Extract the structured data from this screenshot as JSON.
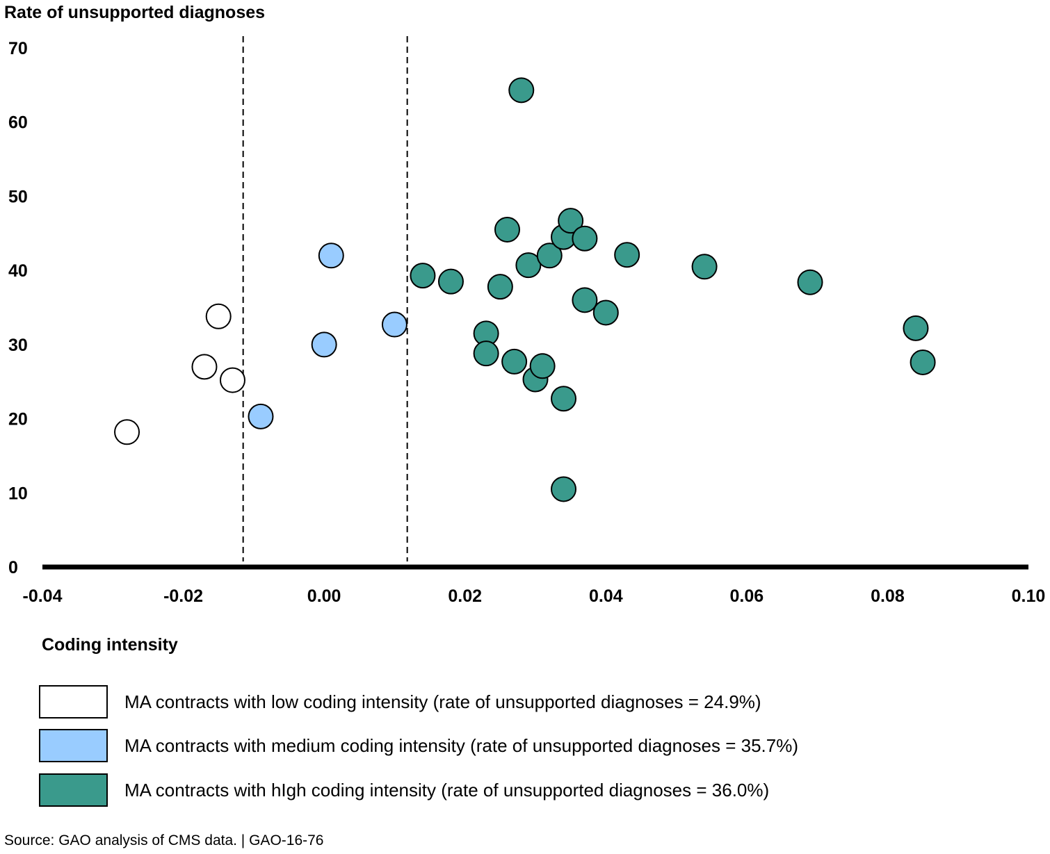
{
  "chart_data": {
    "type": "scatter",
    "y_title": "Rate of unsupported diagnoses",
    "xlim": [
      -0.04,
      0.1
    ],
    "ylim": [
      0,
      70
    ],
    "x_ticks": [
      "-0.04",
      "-0.02",
      "0.00",
      "0.02",
      "0.04",
      "0.06",
      "0.08",
      "0.10"
    ],
    "y_ticks": [
      "0",
      "10",
      "20",
      "30",
      "40",
      "50",
      "60",
      "70"
    ],
    "threshold_lines": [
      -0.0115,
      0.0118
    ],
    "grid": false,
    "legend_title": "Coding intensity",
    "series": [
      {
        "name": "MA contracts with low coding intensity (rate of unsupported diagnoses = 24.9%)",
        "color": "#ffffff",
        "points": [
          [
            -0.028,
            18.2
          ],
          [
            -0.017,
            27.0
          ],
          [
            -0.015,
            33.8
          ],
          [
            -0.013,
            25.2
          ]
        ]
      },
      {
        "name": "MA contracts with medium coding intensity (rate of unsupported diagnoses = 35.7%)",
        "color": "#99ccff",
        "points": [
          [
            -0.009,
            20.3
          ],
          [
            0.0,
            30.0
          ],
          [
            0.001,
            42.0
          ],
          [
            0.01,
            32.7
          ]
        ]
      },
      {
        "name": "MA contracts with hIgh coding intensity (rate of unsupported diagnoses = 36.0%)",
        "color": "#3a9a8c",
        "points": [
          [
            0.014,
            39.3
          ],
          [
            0.018,
            38.5
          ],
          [
            0.023,
            31.5
          ],
          [
            0.023,
            28.8
          ],
          [
            0.025,
            37.8
          ],
          [
            0.026,
            45.5
          ],
          [
            0.027,
            27.7
          ],
          [
            0.028,
            64.3
          ],
          [
            0.029,
            40.7
          ],
          [
            0.03,
            25.3
          ],
          [
            0.031,
            27.1
          ],
          [
            0.032,
            42.0
          ],
          [
            0.034,
            44.5
          ],
          [
            0.034,
            22.7
          ],
          [
            0.034,
            10.5
          ],
          [
            0.035,
            46.7
          ],
          [
            0.037,
            44.3
          ],
          [
            0.037,
            36.0
          ],
          [
            0.04,
            34.3
          ],
          [
            0.043,
            42.1
          ],
          [
            0.054,
            40.5
          ],
          [
            0.069,
            38.4
          ],
          [
            0.084,
            32.2
          ],
          [
            0.085,
            27.6
          ]
        ]
      }
    ]
  },
  "source": "Source: GAO analysis of CMS data.  |  GAO-16-76"
}
